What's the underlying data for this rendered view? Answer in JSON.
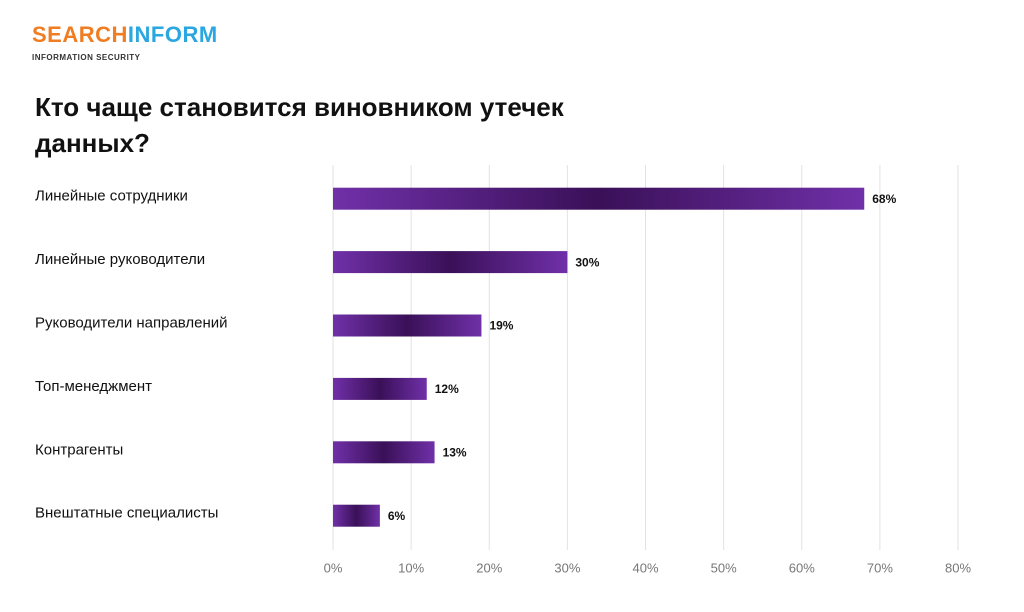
{
  "logo": {
    "brand_first": "SEARCH",
    "brand_second": "INFORM",
    "tagline": "INFORMATION SECURITY"
  },
  "chart_data": {
    "type": "hbar",
    "title": "Кто чаще становится виновником утечек данных?",
    "categories": [
      "Линейные сотрудники",
      "Линейные руководители",
      "Руководители направлений",
      "Топ-менеджмент",
      "Контрагенты",
      "Внештатные специалисты"
    ],
    "values": [
      68,
      30,
      19,
      12,
      13,
      6
    ],
    "value_labels": [
      "68%",
      "30%",
      "19%",
      "12%",
      "13%",
      "6%"
    ],
    "color": "#7030a8",
    "xlim": [
      0,
      80
    ],
    "xticks": [
      {
        "value": 0,
        "label": "0%"
      },
      {
        "value": 10,
        "label": "10%"
      },
      {
        "value": 20,
        "label": "20%"
      },
      {
        "value": 30,
        "label": "30%"
      },
      {
        "value": 40,
        "label": "40%"
      },
      {
        "value": 50,
        "label": "50%"
      },
      {
        "value": 60,
        "label": "60%"
      },
      {
        "value": 70,
        "label": "70%"
      },
      {
        "value": 80,
        "label": "80%"
      }
    ],
    "grid": true
  }
}
